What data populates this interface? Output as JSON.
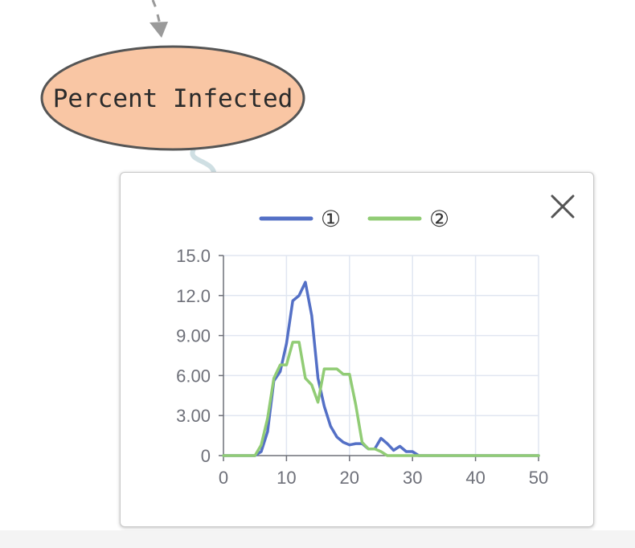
{
  "node": {
    "label": "Percent Infected",
    "fill_color": "#f9c6a4",
    "stroke_color": "#555555"
  },
  "popup": {
    "close_icon": "close-icon"
  },
  "chart_data": {
    "type": "line",
    "xlim": [
      0,
      50
    ],
    "ylim": [
      0,
      15
    ],
    "xticks": [
      "0",
      "10",
      "20",
      "30",
      "40",
      "50"
    ],
    "yticks": [
      "0",
      "3.00",
      "6.00",
      "9.00",
      "12.0",
      "15.0"
    ],
    "grid": true,
    "legend_position": "top",
    "series": [
      {
        "name": "①",
        "color": "#5470c6",
        "x": [
          0,
          5,
          6,
          7,
          8,
          9,
          10,
          11,
          12,
          13,
          14,
          15,
          16,
          17,
          18,
          19,
          20,
          21,
          22,
          23,
          24,
          25,
          26,
          27,
          28,
          29,
          30,
          31,
          35,
          40,
          45,
          50
        ],
        "y": [
          0,
          0,
          0.3,
          1.8,
          5.6,
          6.3,
          8.4,
          11.6,
          12.0,
          13.0,
          10.5,
          5.8,
          3.7,
          2.2,
          1.4,
          1.0,
          0.8,
          0.9,
          0.9,
          0.5,
          0.5,
          1.3,
          0.9,
          0.4,
          0.7,
          0.3,
          0.3,
          0,
          0,
          0,
          0,
          0
        ]
      },
      {
        "name": "②",
        "color": "#91cc75",
        "x": [
          0,
          5,
          6,
          7,
          8,
          9,
          10,
          11,
          12,
          13,
          14,
          15,
          16,
          17,
          18,
          19,
          20,
          21,
          22,
          23,
          24,
          25,
          26,
          27,
          30,
          35,
          40,
          45,
          50
        ],
        "y": [
          0,
          0,
          0.8,
          2.8,
          5.8,
          6.8,
          6.8,
          8.5,
          8.5,
          5.8,
          5.3,
          4.0,
          6.5,
          6.5,
          6.5,
          6.1,
          6.1,
          3.8,
          1.0,
          0.5,
          0.5,
          0.3,
          0,
          0,
          0,
          0,
          0,
          0,
          0
        ]
      }
    ]
  }
}
